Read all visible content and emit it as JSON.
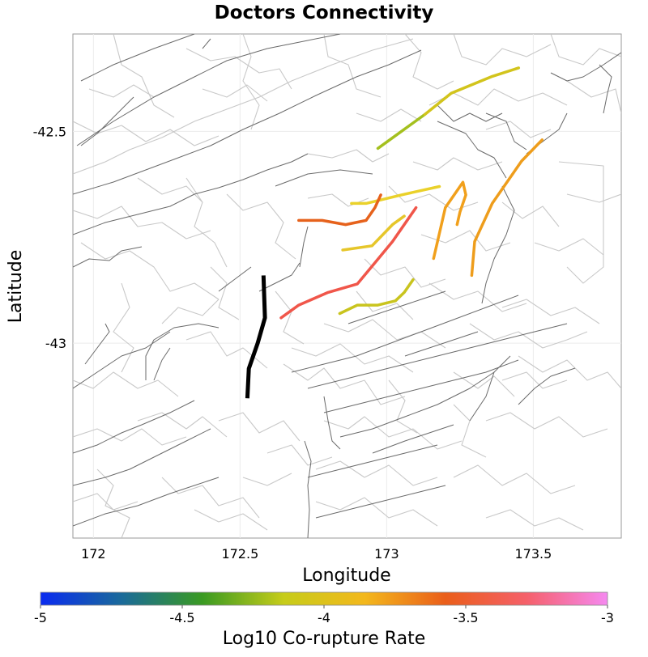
{
  "title": "Doctors Connectivity",
  "map": {
    "x_label": "Longitude",
    "y_label": "Latitude",
    "x_ticks": [
      {
        "value": 172,
        "label": "172"
      },
      {
        "value": 172.5,
        "label": "172.5"
      },
      {
        "value": 173,
        "label": "173"
      },
      {
        "value": 173.5,
        "label": "173.5"
      }
    ],
    "y_ticks": [
      {
        "value": -42.5,
        "label": "-42.5"
      },
      {
        "value": -43,
        "label": "-43"
      }
    ],
    "lon_range": [
      171.93,
      173.8
    ],
    "lat_range": [
      -43.46,
      -42.27
    ],
    "grid": true
  },
  "colorbar": {
    "label": "Log10 Co-rupture Rate",
    "range": [
      -5,
      -3
    ],
    "ticks": [
      {
        "value": -5,
        "label": "-5"
      },
      {
        "value": -4.5,
        "label": "-4.5"
      },
      {
        "value": -4,
        "label": "-4"
      },
      {
        "value": -3.5,
        "label": "-3.5"
      },
      {
        "value": -3,
        "label": "-3"
      }
    ],
    "stops": [
      "#0a2bf0",
      "#1a6a9a",
      "#3a9a22",
      "#c6cc1a",
      "#f3b81c",
      "#ea5e1a",
      "#f5606a",
      "#f589f0"
    ]
  },
  "chart_data": {
    "type": "map",
    "title": "Doctors Connectivity",
    "xlabel": "Longitude",
    "ylabel": "Latitude",
    "source_fault": {
      "name": "Doctors",
      "color": "#000000",
      "trace": [
        [
          172.58,
          -42.84
        ],
        [
          172.585,
          -42.94
        ],
        [
          172.56,
          -43.0
        ],
        [
          172.53,
          -43.06
        ],
        [
          172.525,
          -43.13
        ]
      ]
    },
    "faults": [
      {
        "log_rate": -4.3,
        "color": "#a4c01e",
        "trace": [
          [
            172.97,
            -42.54
          ],
          [
            173.05,
            -42.5
          ],
          [
            173.13,
            -42.46
          ]
        ]
      },
      {
        "log_rate": -4.1,
        "color": "#d2c41c",
        "trace": [
          [
            173.13,
            -42.46
          ],
          [
            173.22,
            -42.41
          ],
          [
            173.36,
            -42.37
          ],
          [
            173.45,
            -42.35
          ]
        ]
      },
      {
        "log_rate": -3.75,
        "color": "#ee9d1c",
        "trace": [
          [
            173.29,
            -42.84
          ],
          [
            173.3,
            -42.76
          ],
          [
            173.36,
            -42.67
          ],
          [
            173.46,
            -42.57
          ],
          [
            173.53,
            -42.52
          ]
        ]
      },
      {
        "log_rate": -3.95,
        "color": "#ead12a",
        "trace": [
          [
            172.88,
            -42.67
          ],
          [
            172.93,
            -42.67
          ],
          [
            173.05,
            -42.65
          ],
          [
            173.18,
            -42.63
          ]
        ]
      },
      {
        "log_rate": -3.55,
        "color": "#e6621c",
        "trace": [
          [
            172.7,
            -42.71
          ],
          [
            172.78,
            -42.71
          ],
          [
            172.86,
            -42.72
          ],
          [
            172.93,
            -42.71
          ],
          [
            172.96,
            -42.68
          ],
          [
            172.98,
            -42.65
          ]
        ]
      },
      {
        "log_rate": -3.85,
        "color": "#f1a01c",
        "trace": [
          [
            173.16,
            -42.8
          ],
          [
            173.2,
            -42.68
          ],
          [
            173.26,
            -42.62
          ],
          [
            173.27,
            -42.65
          ],
          [
            173.25,
            -42.69
          ],
          [
            173.24,
            -42.72
          ]
        ]
      },
      {
        "log_rate": -4.05,
        "color": "#e6c62a",
        "trace": [
          [
            172.85,
            -42.78
          ],
          [
            172.95,
            -42.77
          ],
          [
            173.02,
            -42.72
          ],
          [
            173.06,
            -42.7
          ]
        ]
      },
      {
        "log_rate": -3.4,
        "color": "#f0564a",
        "trace": [
          [
            172.64,
            -42.94
          ],
          [
            172.7,
            -42.91
          ],
          [
            172.8,
            -42.88
          ],
          [
            172.9,
            -42.86
          ],
          [
            172.96,
            -42.81
          ],
          [
            173.02,
            -42.76
          ],
          [
            173.1,
            -42.68
          ]
        ]
      },
      {
        "log_rate": -4.15,
        "color": "#c9c41e",
        "trace": [
          [
            172.84,
            -42.93
          ],
          [
            172.9,
            -42.91
          ],
          [
            172.97,
            -42.91
          ],
          [
            173.03,
            -42.9
          ],
          [
            173.06,
            -42.88
          ],
          [
            173.09,
            -42.85
          ]
        ]
      }
    ]
  }
}
